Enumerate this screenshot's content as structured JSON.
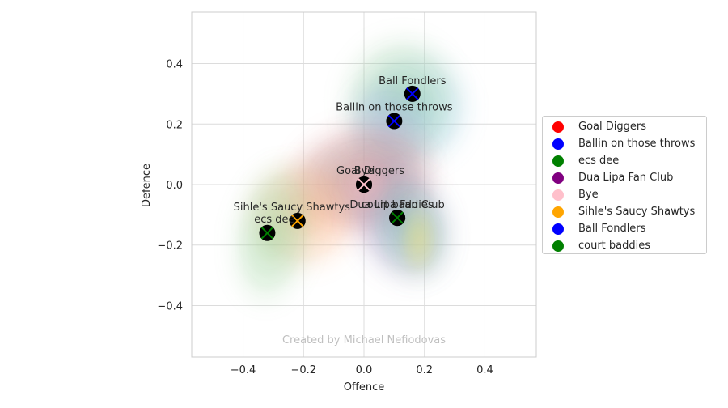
{
  "chart_data": {
    "type": "scatter",
    "xlabel": "Offence",
    "ylabel": "Defence",
    "xlim": [
      -0.57,
      0.57
    ],
    "ylim": [
      -0.57,
      0.57
    ],
    "xticks": [
      "−0.4",
      "−0.2",
      "0.0",
      "0.2",
      "0.4"
    ],
    "yticks": [
      "−0.4",
      "−0.2",
      "0.0",
      "0.2",
      "0.4"
    ],
    "xtick_values": [
      -0.4,
      -0.2,
      0.0,
      0.2,
      0.4
    ],
    "ytick_values": [
      -0.4,
      -0.2,
      0.0,
      0.2,
      0.4
    ],
    "grid": true,
    "legend_placement": "outside right",
    "watermark": "Created by Michael Nefiodovas",
    "series": [
      {
        "name": "Goal Diggers",
        "color": "#ff0000",
        "x": 0.0,
        "y": 0.0
      },
      {
        "name": "Ballin on those throws",
        "color": "#0000ff",
        "x": 0.1,
        "y": 0.21
      },
      {
        "name": "ecs dee",
        "color": "#008000",
        "x": -0.32,
        "y": -0.16
      },
      {
        "name": "Dua Lipa Fan Club",
        "color": "#800080",
        "x": 0.11,
        "y": -0.11
      },
      {
        "name": "Bye",
        "color": "#ffc0cb",
        "x": 0.0,
        "y": 0.0
      },
      {
        "name": "Sihle's Saucy Shawtys",
        "color": "#ffa500",
        "x": -0.22,
        "y": -0.12
      },
      {
        "name": "Ball Fondlers",
        "color": "#0000ff",
        "x": 0.16,
        "y": 0.3
      },
      {
        "name": "court baddies",
        "color": "#008000",
        "x": 0.11,
        "y": -0.11
      }
    ]
  }
}
